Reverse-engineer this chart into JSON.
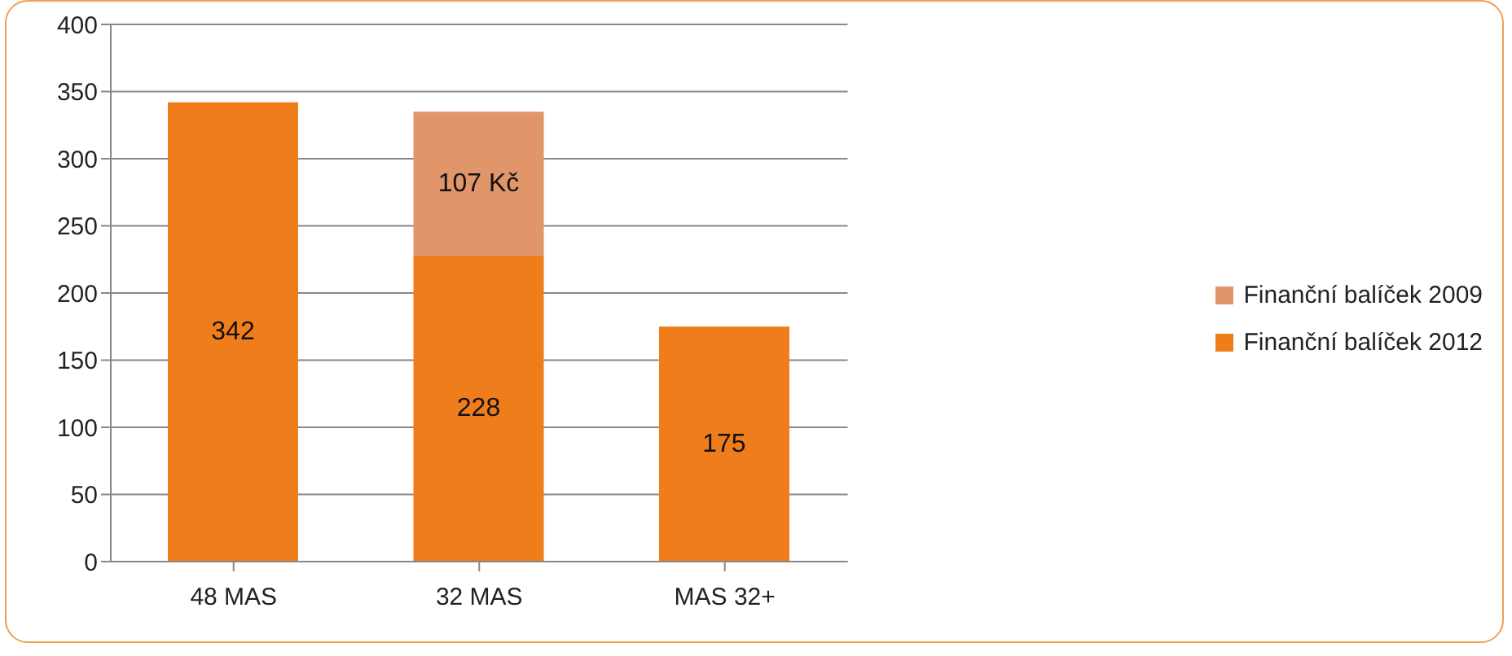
{
  "chart_data": {
    "type": "bar",
    "stacked": true,
    "categories": [
      "48 MAS",
      "32 MAS",
      "MAS 32+"
    ],
    "series": [
      {
        "name": "Finanční balíček 2012",
        "color": "#f07d1c",
        "values": [
          342,
          228,
          175
        ],
        "value_labels": [
          "342",
          "228",
          "175"
        ]
      },
      {
        "name": "Finanční balíček 2009",
        "color": "#e0956a",
        "values": [
          null,
          107,
          null
        ],
        "value_labels": [
          null,
          "107 Kč",
          null
        ]
      }
    ],
    "ylim": [
      0,
      400
    ],
    "yticks": [
      0,
      50,
      100,
      150,
      200,
      250,
      300,
      350,
      400
    ],
    "grid": "y",
    "legend": "right"
  }
}
